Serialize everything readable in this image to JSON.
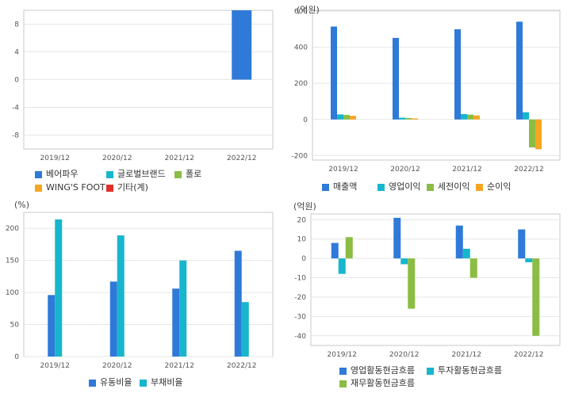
{
  "colors": {
    "blue": "#2f7ad8",
    "cyan": "#17b6cc",
    "green": "#8bbd44",
    "orange": "#f5a623",
    "red": "#e0302a",
    "grid": "#e6e6e6",
    "frame": "#c8c8c8"
  },
  "chart_data": [
    {
      "id": "sales-composition",
      "type": "bar",
      "unit": "",
      "categories": [
        "2019/12",
        "2020/12",
        "2021/12",
        "2022/12"
      ],
      "ylim": [
        -10,
        10
      ],
      "yticks": [
        -8,
        -4,
        0,
        4,
        8
      ],
      "series": [
        {
          "name": "베어파우",
          "color": "#2f7ad8",
          "values": [
            null,
            null,
            null,
            10
          ]
        },
        {
          "name": "글로벌브랜드",
          "color": "#17b6cc",
          "values": [
            null,
            null,
            null,
            null
          ]
        },
        {
          "name": "폴로",
          "color": "#8bbd44",
          "values": [
            null,
            null,
            null,
            null
          ]
        },
        {
          "name": "WING'S FOOT",
          "color": "#f5a623",
          "values": [
            null,
            null,
            null,
            null
          ]
        },
        {
          "name": "기타(계)",
          "color": "#e0302a",
          "values": [
            null,
            null,
            null,
            null
          ]
        }
      ],
      "legend_position": "bottom",
      "grid": true
    },
    {
      "id": "income",
      "type": "bar",
      "unit": "(억원)",
      "categories": [
        "2019/12",
        "2020/12",
        "2021/12",
        "2022/12"
      ],
      "ylim": [
        -225,
        605
      ],
      "yticks": [
        -200,
        0,
        200,
        400,
        600
      ],
      "series": [
        {
          "name": "매출액",
          "color": "#2f7ad8",
          "values": [
            515,
            452,
            500,
            542
          ]
        },
        {
          "name": "영업이익",
          "color": "#17b6cc",
          "values": [
            28,
            10,
            30,
            40
          ]
        },
        {
          "name": "세전이익",
          "color": "#8bbd44",
          "values": [
            25,
            8,
            27,
            -155
          ]
        },
        {
          "name": "순이익",
          "color": "#f5a623",
          "values": [
            20,
            6,
            22,
            -165
          ]
        }
      ],
      "legend_position": "bottom",
      "grid": true
    },
    {
      "id": "ratios",
      "type": "bar",
      "unit": "(%)",
      "categories": [
        "2019/12",
        "2020/12",
        "2021/12",
        "2022/12"
      ],
      "ylim": [
        0,
        225
      ],
      "yticks": [
        0,
        50,
        100,
        150,
        200
      ],
      "series": [
        {
          "name": "유동비율",
          "color": "#2f7ad8",
          "values": [
            96,
            117,
            106,
            165
          ]
        },
        {
          "name": "부채비율",
          "color": "#17b6cc",
          "values": [
            214,
            189,
            150,
            85
          ]
        }
      ],
      "legend_position": "bottom",
      "grid": true
    },
    {
      "id": "cashflow",
      "type": "bar",
      "unit": "(억원)",
      "categories": [
        "2019/12",
        "2020/12",
        "2021/12",
        "2022/12"
      ],
      "ylim": [
        -45,
        23
      ],
      "yticks": [
        -40,
        -30,
        -20,
        -10,
        0,
        10,
        20
      ],
      "series": [
        {
          "name": "영업활동현금흐름",
          "color": "#2f7ad8",
          "values": [
            8,
            21,
            17,
            15
          ]
        },
        {
          "name": "투자활동현금흐름",
          "color": "#17b6cc",
          "values": [
            -8,
            -3,
            5,
            -2
          ]
        },
        {
          "name": "재무활동현금흐름",
          "color": "#8bbd44",
          "values": [
            11,
            -26,
            -10,
            -40
          ]
        }
      ],
      "legend_position": "bottom",
      "grid": true
    }
  ]
}
